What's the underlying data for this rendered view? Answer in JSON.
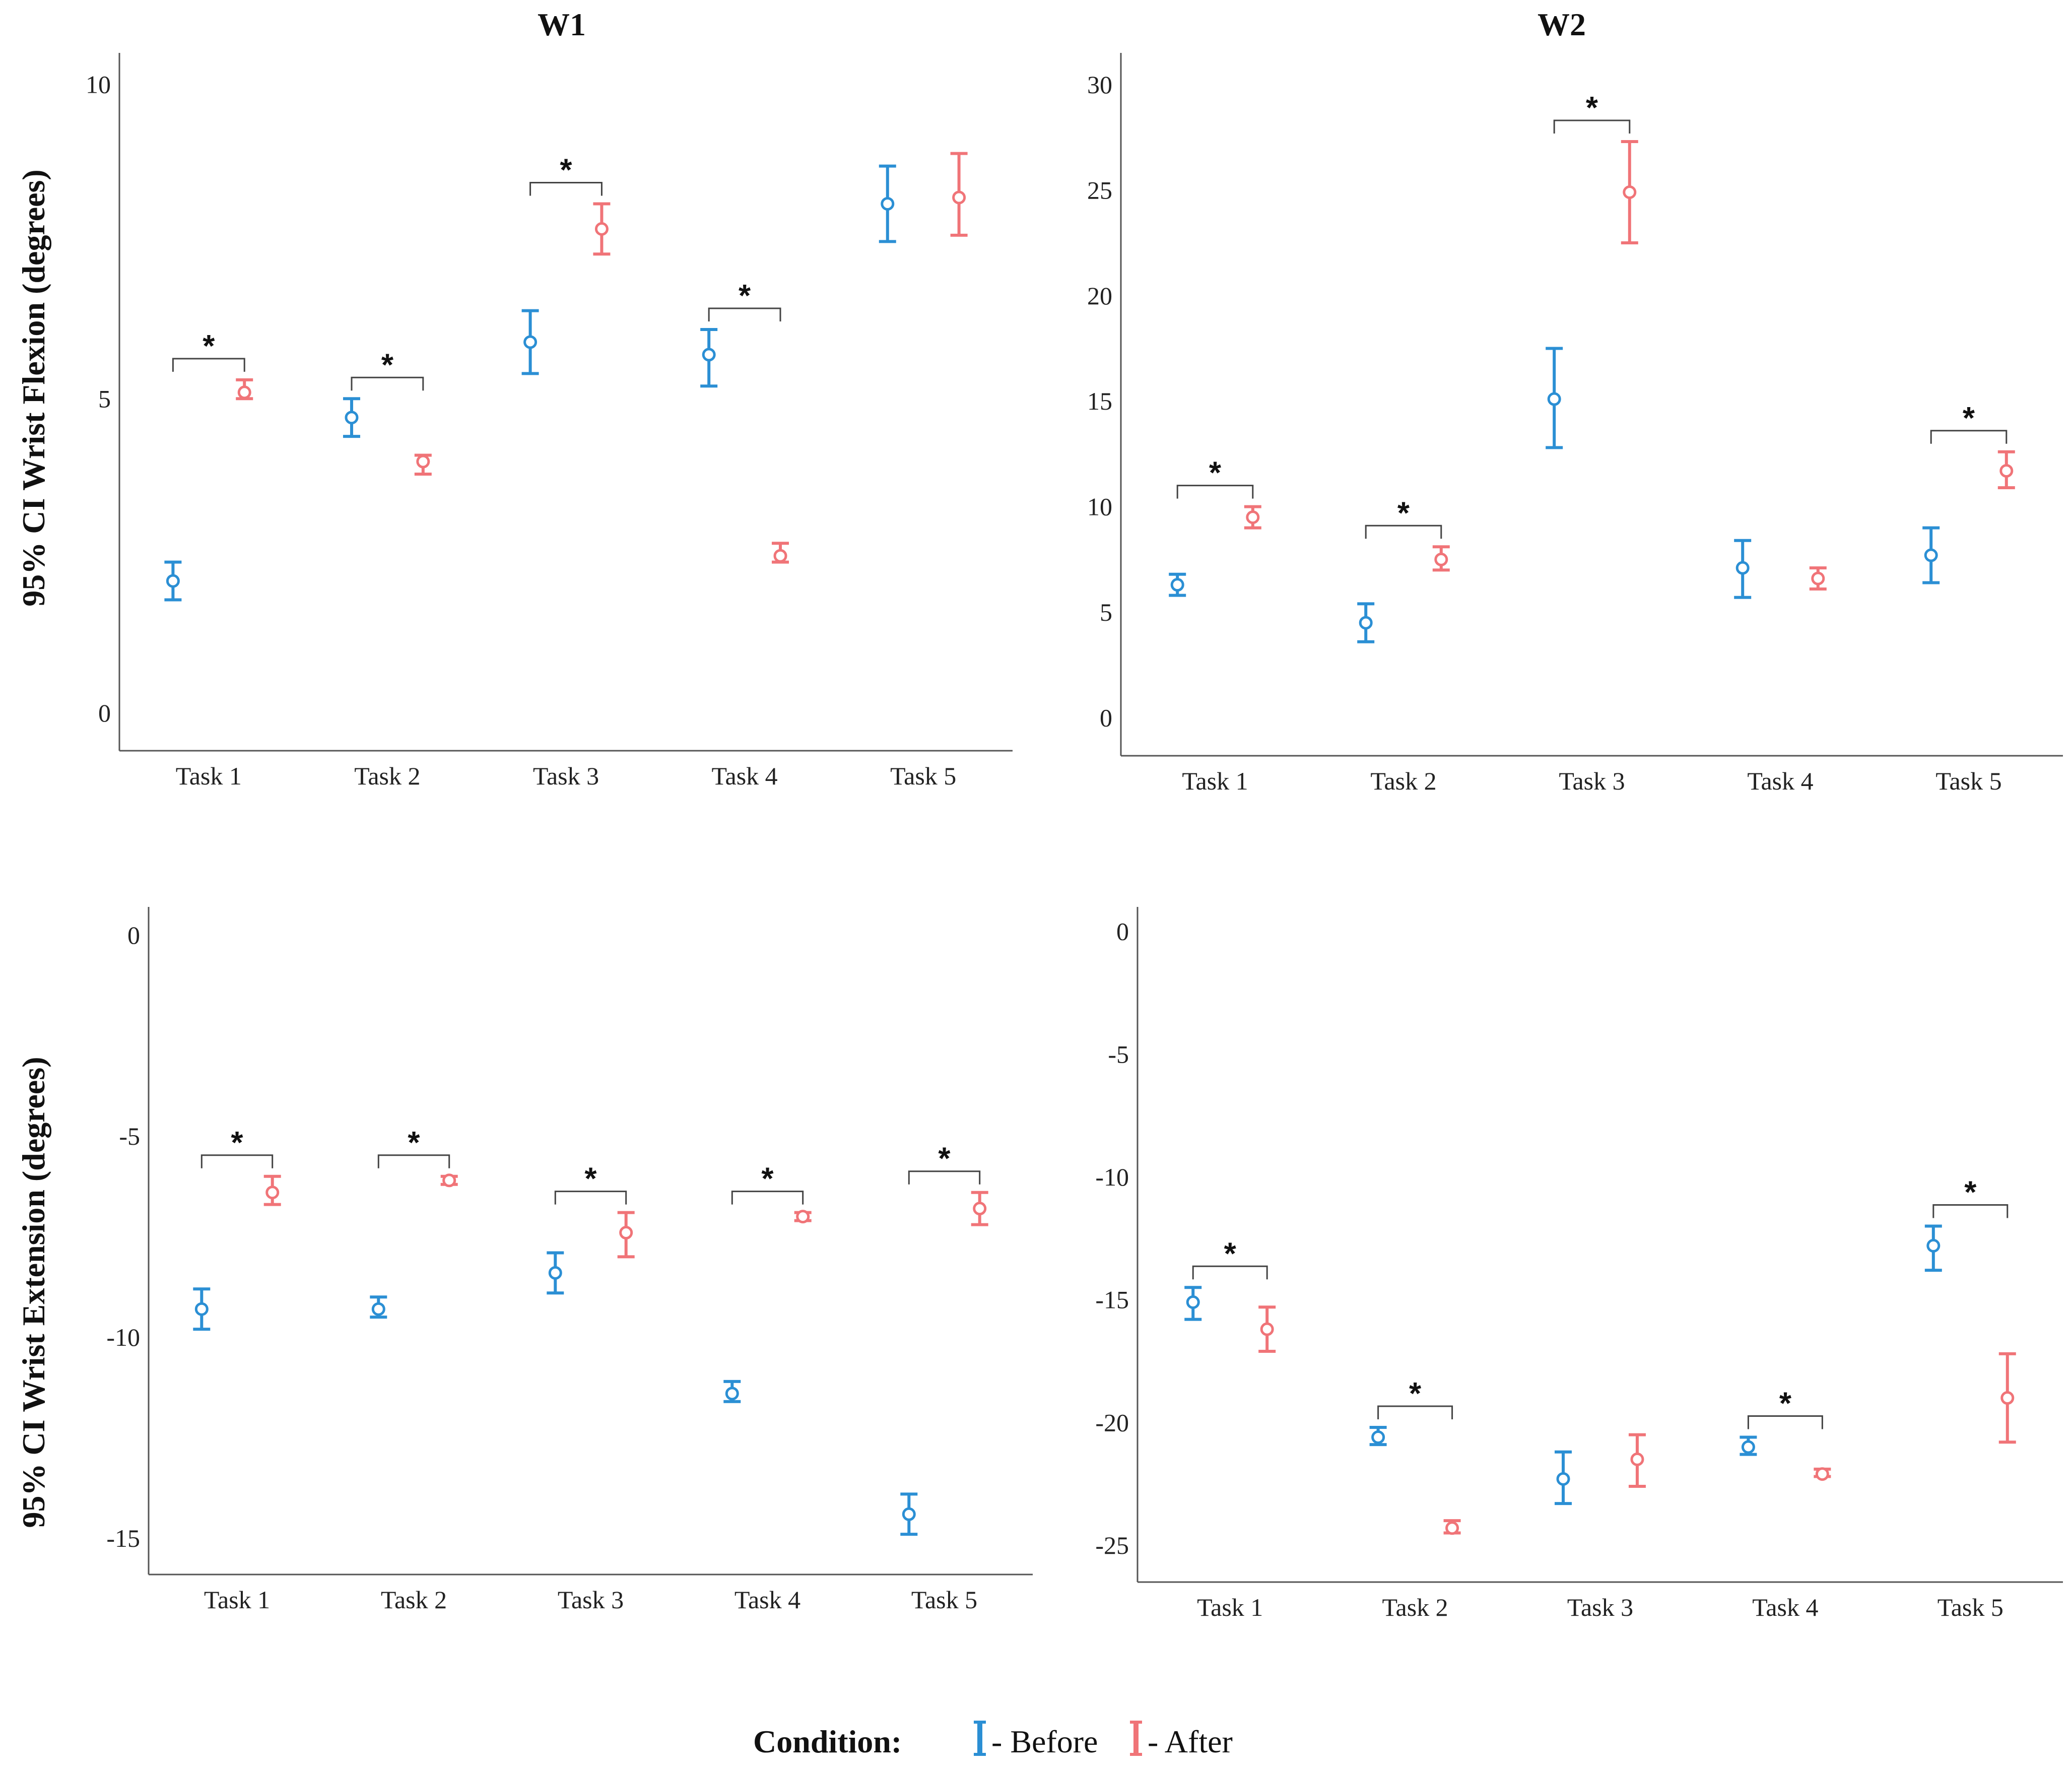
{
  "figure": {
    "col_titles": [
      "W1",
      "W2"
    ],
    "row_labels": [
      "95% CI Wrist Flexion (degrees)",
      "95% CI Wrist Extension (degrees)"
    ],
    "legend": {
      "title": "Condition:",
      "items": [
        {
          "label": "- Before",
          "color": "#2b8fd4"
        },
        {
          "label": "- After",
          "color": "#f07478"
        }
      ]
    },
    "significance_marker": "*",
    "colors": {
      "before": "#2b8fd4",
      "after": "#f07478",
      "axis": "#555555"
    }
  },
  "chart_data": [
    {
      "type": "errorbar",
      "title": "W1",
      "ylabel": "95% CI Wrist Flexion (degrees)",
      "categories": [
        "Task 1",
        "Task 2",
        "Task 3",
        "Task 4",
        "Task 5"
      ],
      "ylim": [
        -0.6,
        10.5
      ],
      "yticks": [
        0,
        5,
        10
      ],
      "series": [
        {
          "name": "Before",
          "mean": [
            2.1,
            4.7,
            5.9,
            5.7,
            8.1
          ],
          "lower": [
            1.8,
            4.4,
            5.4,
            5.2,
            7.5
          ],
          "upper": [
            2.4,
            5.0,
            6.4,
            6.1,
            8.7
          ]
        },
        {
          "name": "After",
          "mean": [
            5.1,
            4.0,
            7.7,
            2.5,
            8.2
          ],
          "lower": [
            5.0,
            3.8,
            7.3,
            2.4,
            7.6
          ],
          "upper": [
            5.3,
            4.1,
            8.1,
            2.7,
            8.9
          ]
        }
      ],
      "significant": [
        true,
        true,
        true,
        true,
        false
      ]
    },
    {
      "type": "errorbar",
      "title": "W2",
      "ylabel": "",
      "categories": [
        "Task 1",
        "Task 2",
        "Task 3",
        "Task 4",
        "Task 5"
      ],
      "ylim": [
        -1.8,
        31.5
      ],
      "yticks": [
        0,
        5,
        10,
        15,
        20,
        25,
        30
      ],
      "series": [
        {
          "name": "Before",
          "mean": [
            6.3,
            4.5,
            15.1,
            7.1,
            7.7
          ],
          "lower": [
            5.8,
            3.6,
            12.8,
            5.7,
            6.4
          ],
          "upper": [
            6.8,
            5.4,
            17.5,
            8.4,
            9.0
          ]
        },
        {
          "name": "After",
          "mean": [
            9.5,
            7.5,
            24.9,
            6.6,
            11.7
          ],
          "lower": [
            9.0,
            7.0,
            22.5,
            6.1,
            10.9
          ],
          "upper": [
            10.0,
            8.1,
            27.3,
            7.1,
            12.6
          ]
        }
      ],
      "significant": [
        true,
        true,
        true,
        false,
        true
      ]
    },
    {
      "type": "errorbar",
      "title": "",
      "ylabel": "95% CI Wrist Extension (degrees)",
      "categories": [
        "Task 1",
        "Task 2",
        "Task 3",
        "Task 4",
        "Task 5"
      ],
      "ylim": [
        -15.9,
        0.7
      ],
      "yticks": [
        0,
        -5,
        -10,
        -15
      ],
      "series": [
        {
          "name": "Before",
          "mean": [
            -9.3,
            -9.3,
            -8.4,
            -11.4,
            -14.4
          ],
          "lower": [
            -9.8,
            -9.5,
            -8.9,
            -11.6,
            -14.9
          ],
          "upper": [
            -8.8,
            -9.0,
            -7.9,
            -11.1,
            -13.9
          ]
        },
        {
          "name": "After",
          "mean": [
            -6.4,
            -6.1,
            -7.4,
            -7.0,
            -6.8
          ],
          "lower": [
            -6.7,
            -6.2,
            -8.0,
            -7.1,
            -7.2
          ],
          "upper": [
            -6.0,
            -6.0,
            -6.9,
            -6.9,
            -6.4
          ]
        }
      ],
      "significant": [
        true,
        true,
        true,
        true,
        true
      ]
    },
    {
      "type": "errorbar",
      "title": "",
      "ylabel": "",
      "categories": [
        "Task 1",
        "Task 2",
        "Task 3",
        "Task 4",
        "Task 5"
      ],
      "ylim": [
        -26.5,
        1.0
      ],
      "yticks": [
        0,
        -5,
        -10,
        -15,
        -20,
        -25
      ],
      "series": [
        {
          "name": "Before",
          "mean": [
            -15.1,
            -20.6,
            -22.3,
            -21.0,
            -12.8
          ],
          "lower": [
            -15.8,
            -20.9,
            -23.3,
            -21.3,
            -13.8
          ],
          "upper": [
            -14.5,
            -20.2,
            -21.2,
            -20.6,
            -12.0
          ]
        },
        {
          "name": "After",
          "mean": [
            -16.2,
            -24.3,
            -21.5,
            -22.1,
            -19.0
          ],
          "lower": [
            -17.1,
            -24.5,
            -22.6,
            -22.2,
            -20.8
          ],
          "upper": [
            -15.3,
            -24.0,
            -20.5,
            -21.9,
            -17.2
          ]
        }
      ],
      "significant": [
        true,
        true,
        false,
        true,
        true
      ]
    }
  ]
}
